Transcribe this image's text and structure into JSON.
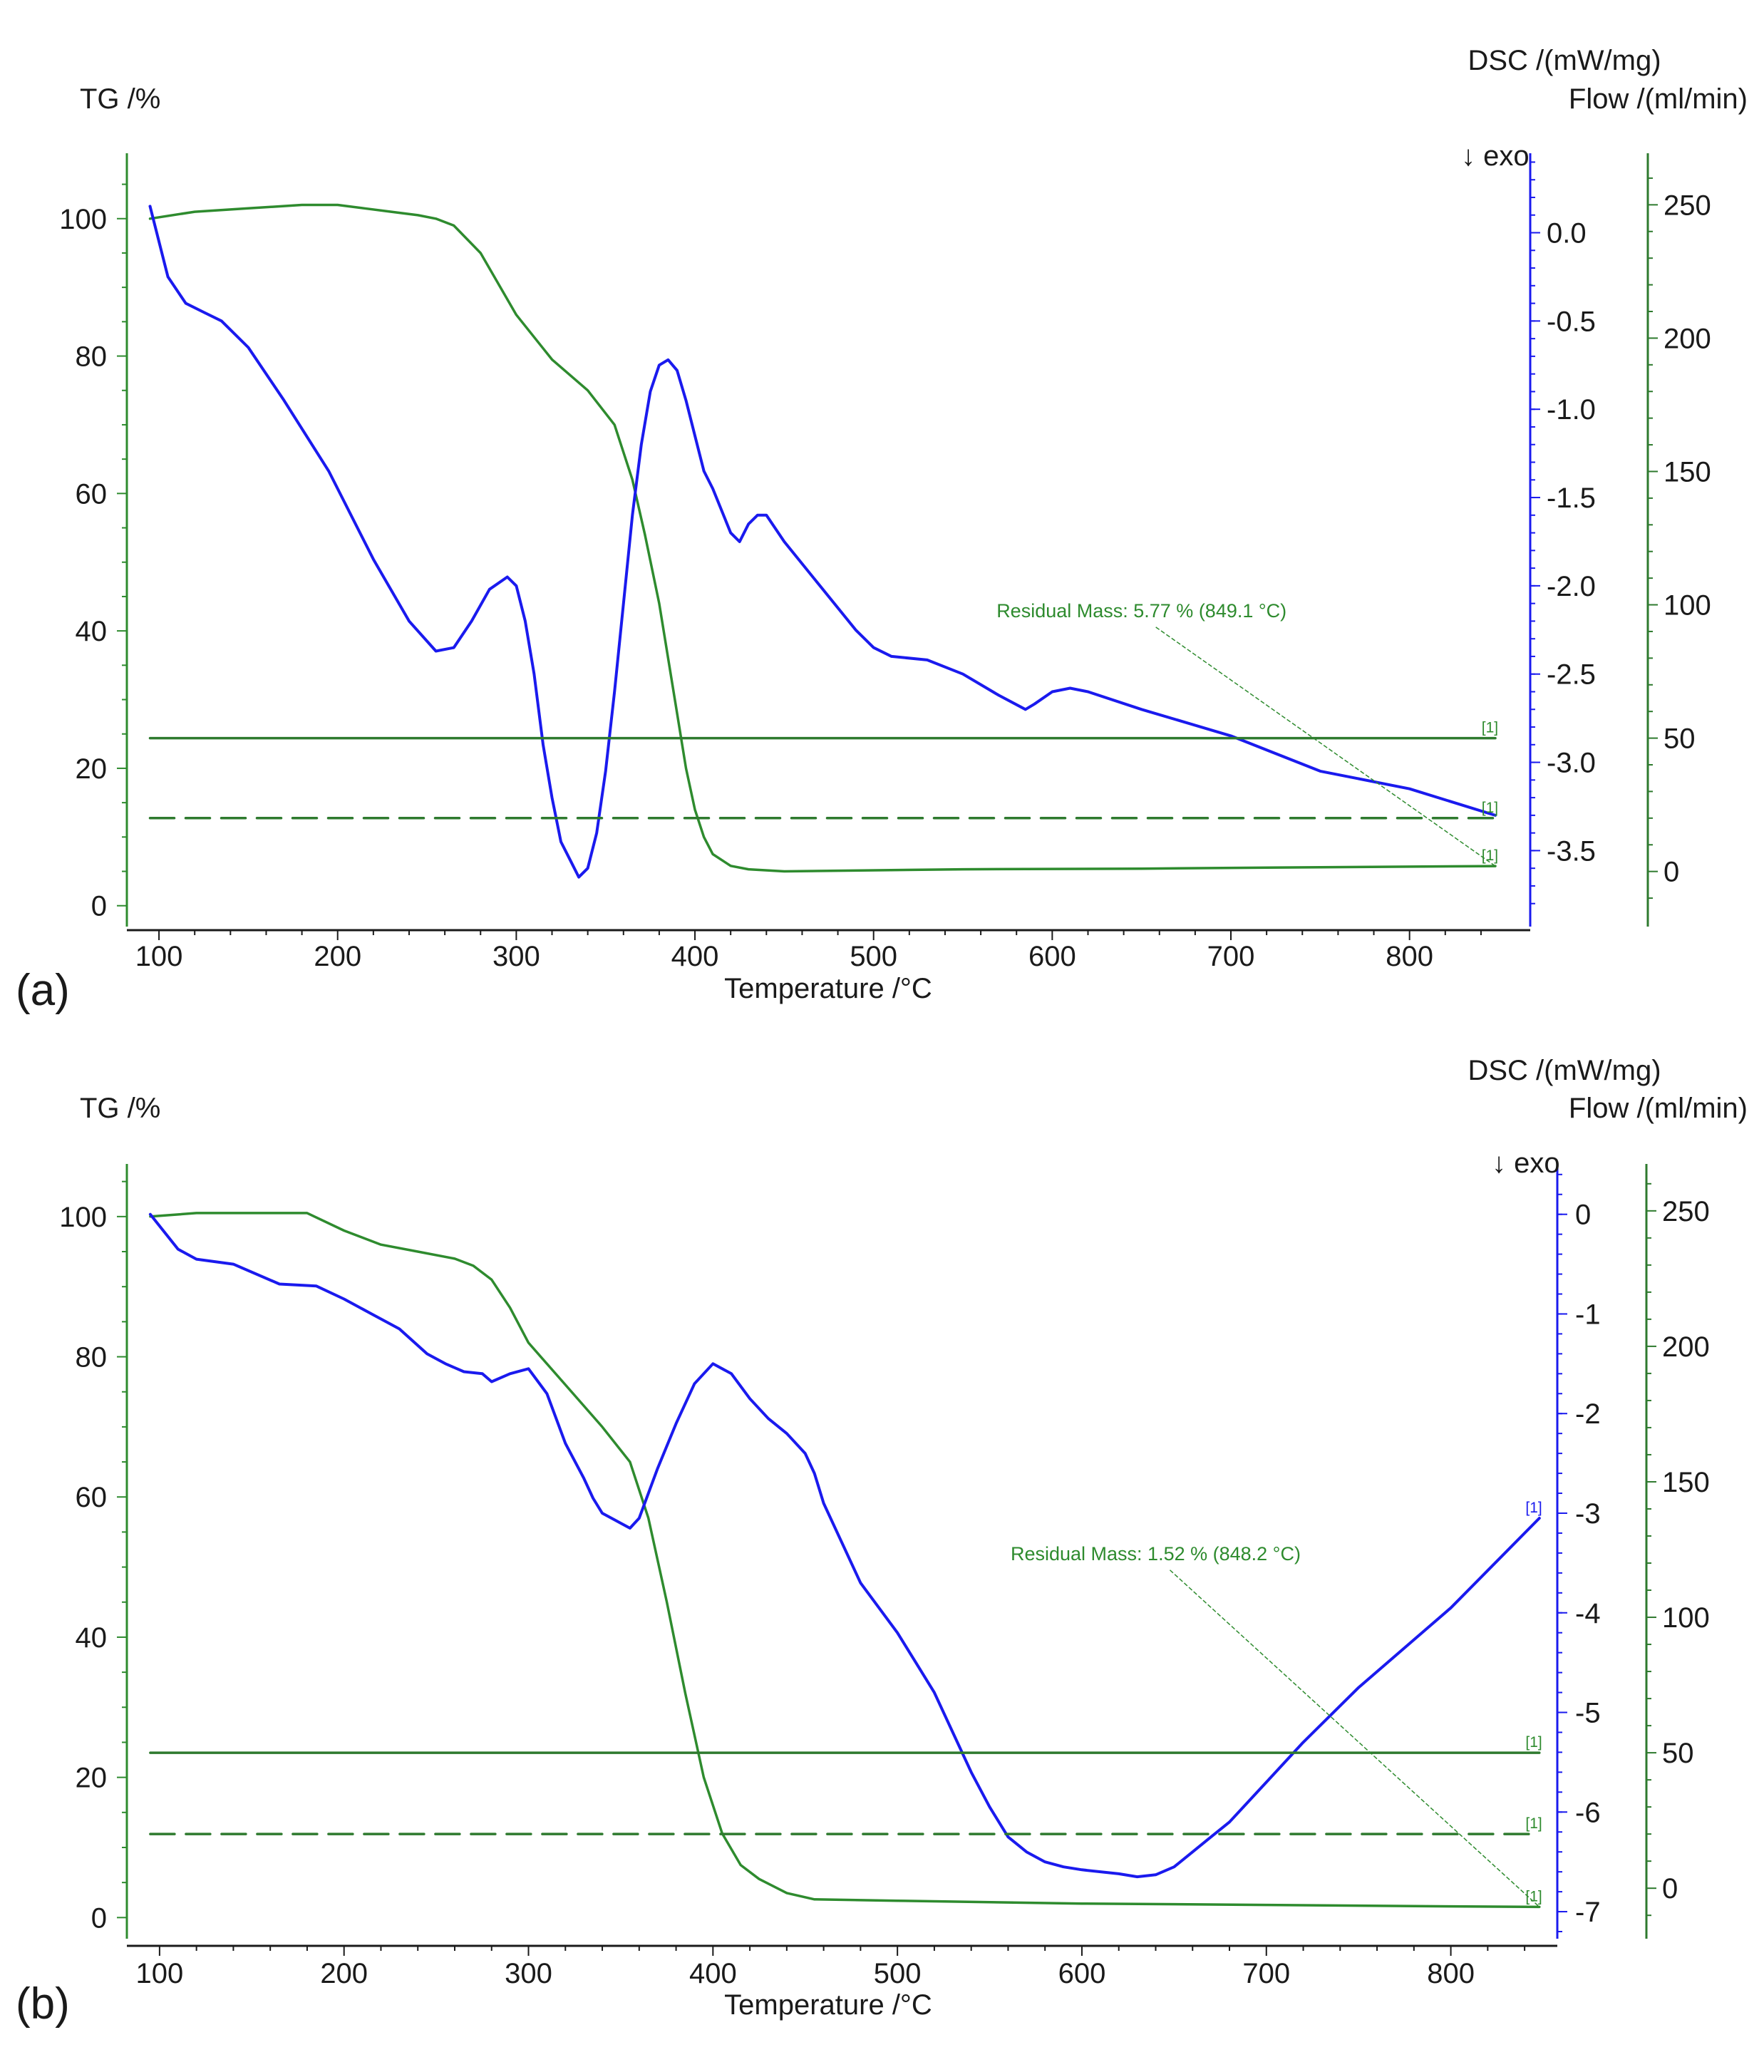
{
  "colors": {
    "tg": "#2e8b2e",
    "dsc": "#1a1aee",
    "flow": "#2e7a2e",
    "axis": "#1a1a1a"
  },
  "chart_data": [
    {
      "type": "line",
      "panel_label": "(a)",
      "xlabel": "Temperature /°C",
      "ylabel_left": "TG /%",
      "ylabel_right_dsc": "DSC /(mW/mg)",
      "ylabel_right_flow": "Flow /(ml/min)",
      "exo_label": "↓ exo",
      "xlim": [
        90,
        850
      ],
      "xticks": [
        100,
        200,
        300,
        400,
        500,
        600,
        700,
        800
      ],
      "tg_lim": [
        -2,
        109
      ],
      "tg_ticks": [
        0,
        20,
        40,
        60,
        80,
        100
      ],
      "dsc_lim": [
        -3.89,
        0.43
      ],
      "dsc_ticks": [
        0.0,
        -0.5,
        -1.0,
        -1.5,
        -2.0,
        -2.5,
        -3.0,
        -3.5
      ],
      "dsc_tick_labels": [
        "0.0",
        "-0.5",
        "-1.0",
        "-1.5",
        "-2.0",
        "-2.5",
        "-3.0",
        "-3.5"
      ],
      "flow_lim": [
        -18,
        268
      ],
      "flow_ticks": [
        0,
        50,
        100,
        150,
        200,
        250
      ],
      "series": [
        {
          "key": "tg",
          "axis": "tg",
          "x": [
            95,
            120,
            150,
            180,
            200,
            215,
            230,
            245,
            255,
            265,
            280,
            300,
            320,
            340,
            355,
            365,
            372,
            380,
            390,
            395,
            400,
            405,
            410,
            420,
            430,
            450,
            480,
            550,
            650,
            750,
            848
          ],
          "y": [
            100,
            101,
            101.5,
            102,
            102,
            101.5,
            101,
            100.5,
            100,
            99,
            95,
            86,
            79.5,
            75,
            70,
            62,
            54,
            44,
            28,
            20,
            14,
            10,
            7.5,
            5.8,
            5.3,
            5.0,
            5.1,
            5.3,
            5.4,
            5.6,
            5.77
          ]
        },
        {
          "key": "dsc",
          "axis": "dsc",
          "x": [
            95,
            105,
            115,
            125,
            135,
            150,
            170,
            195,
            220,
            240,
            255,
            265,
            275,
            285,
            295,
            300,
            305,
            310,
            315,
            320,
            325,
            330,
            335,
            340,
            345,
            350,
            355,
            360,
            365,
            370,
            375,
            380,
            385,
            390,
            395,
            400,
            405,
            410,
            420,
            425,
            430,
            435,
            440,
            450,
            470,
            490,
            500,
            510,
            530,
            550,
            570,
            585,
            590,
            600,
            610,
            620,
            650,
            700,
            750,
            800,
            848
          ],
          "y": [
            0.15,
            -0.25,
            -0.4,
            -0.45,
            -0.5,
            -0.65,
            -0.95,
            -1.35,
            -1.85,
            -2.2,
            -2.37,
            -2.35,
            -2.2,
            -2.02,
            -1.95,
            -2.0,
            -2.2,
            -2.5,
            -2.9,
            -3.2,
            -3.45,
            -3.55,
            -3.65,
            -3.6,
            -3.4,
            -3.05,
            -2.6,
            -2.1,
            -1.6,
            -1.2,
            -0.9,
            -0.75,
            -0.72,
            -0.78,
            -0.95,
            -1.15,
            -1.35,
            -1.45,
            -1.7,
            -1.75,
            -1.65,
            -1.6,
            -1.6,
            -1.75,
            -2.0,
            -2.25,
            -2.35,
            -2.4,
            -2.42,
            -2.5,
            -2.62,
            -2.7,
            -2.67,
            -2.6,
            -2.58,
            -2.6,
            -2.7,
            -2.85,
            -3.05,
            -3.15,
            -3.3
          ]
        },
        {
          "key": "flow",
          "axis": "flow",
          "dash": false,
          "x": [
            95,
            848
          ],
          "y": [
            50,
            50
          ]
        },
        {
          "key": "flow",
          "axis": "flow",
          "dash": true,
          "x": [
            95,
            848
          ],
          "y": [
            20,
            20
          ]
        }
      ],
      "annotation": {
        "text": "Residual Mass: 5.77 % (849.1 °C)",
        "x": 650,
        "tg": 42,
        "to_x": 848,
        "to_tg": 5.77
      },
      "markers": [
        {
          "text": "[1]",
          "x": 845,
          "axis": "flow",
          "y": 50,
          "color": "tg"
        },
        {
          "text": "[1]",
          "x": 845,
          "axis": "flow",
          "y": 20,
          "color": "tg"
        },
        {
          "text": "[1]",
          "x": 845,
          "axis": "tg",
          "y": 5.77,
          "color": "tg"
        }
      ]
    },
    {
      "type": "line",
      "panel_label": "(b)",
      "xlabel": "Temperature /°C",
      "ylabel_left": "TG /%",
      "ylabel_right_dsc": "DSC /(mW/mg)",
      "ylabel_right_flow": "Flow /(ml/min)",
      "exo_label": "↓ exo",
      "xlim": [
        90,
        850
      ],
      "xticks": [
        100,
        200,
        300,
        400,
        500,
        600,
        700,
        800
      ],
      "tg_lim": [
        -2,
        107
      ],
      "tg_ticks": [
        0,
        20,
        40,
        60,
        80,
        100
      ],
      "dsc_lim": [
        -7.2,
        0.47
      ],
      "dsc_ticks": [
        0,
        -1,
        -2,
        -3,
        -4,
        -5,
        -6,
        -7
      ],
      "dsc_tick_labels": [
        "0",
        "-1",
        "-2",
        "-3",
        "-4",
        "-5",
        "-6",
        "-7"
      ],
      "flow_lim": [
        -16,
        266
      ],
      "flow_ticks": [
        0,
        50,
        100,
        150,
        200,
        250
      ],
      "series": [
        {
          "key": "tg",
          "axis": "tg",
          "x": [
            95,
            120,
            150,
            180,
            200,
            220,
            240,
            260,
            270,
            280,
            290,
            300,
            320,
            340,
            355,
            365,
            375,
            385,
            395,
            405,
            415,
            425,
            440,
            455,
            500,
            600,
            700,
            800,
            848
          ],
          "y": [
            100,
            100.5,
            100.5,
            100.5,
            98,
            96,
            95,
            94,
            93,
            91,
            87,
            82,
            76,
            70,
            65,
            57,
            45,
            32,
            20,
            12,
            7.5,
            5.5,
            3.5,
            2.6,
            2.4,
            2.0,
            1.8,
            1.6,
            1.52
          ]
        },
        {
          "key": "dsc",
          "axis": "dsc",
          "x": [
            95,
            110,
            120,
            140,
            165,
            185,
            200,
            215,
            230,
            245,
            255,
            265,
            275,
            280,
            290,
            300,
            310,
            320,
            330,
            335,
            340,
            345,
            350,
            355,
            360,
            370,
            380,
            390,
            400,
            410,
            420,
            430,
            440,
            450,
            455,
            460,
            470,
            480,
            490,
            500,
            510,
            520,
            530,
            540,
            550,
            560,
            570,
            580,
            590,
            600,
            620,
            630,
            640,
            650,
            660,
            670,
            680,
            700,
            720,
            750,
            800,
            848
          ],
          "y": [
            0.0,
            -0.35,
            -0.45,
            -0.5,
            -0.7,
            -0.72,
            -0.85,
            -1.0,
            -1.15,
            -1.4,
            -1.5,
            -1.58,
            -1.6,
            -1.68,
            -1.6,
            -1.55,
            -1.8,
            -2.3,
            -2.65,
            -2.85,
            -3.0,
            -3.05,
            -3.1,
            -3.15,
            -3.05,
            -2.55,
            -2.1,
            -1.7,
            -1.5,
            -1.6,
            -1.85,
            -2.05,
            -2.2,
            -2.4,
            -2.6,
            -2.9,
            -3.3,
            -3.7,
            -3.95,
            -4.2,
            -4.5,
            -4.8,
            -5.2,
            -5.6,
            -5.95,
            -6.25,
            -6.4,
            -6.5,
            -6.55,
            -6.58,
            -6.62,
            -6.65,
            -6.63,
            -6.55,
            -6.4,
            -6.25,
            -6.1,
            -5.7,
            -5.3,
            -4.75,
            -3.95,
            -3.05
          ]
        },
        {
          "key": "flow",
          "axis": "flow",
          "dash": false,
          "x": [
            95,
            848
          ],
          "y": [
            50,
            50
          ]
        },
        {
          "key": "flow",
          "axis": "flow",
          "dash": true,
          "x": [
            95,
            848
          ],
          "y": [
            20,
            20
          ]
        }
      ],
      "annotation": {
        "text": "Residual Mass: 1.52 % (848.2 °C)",
        "x": 640,
        "tg": 51,
        "to_x": 848,
        "to_tg": 1.52
      },
      "markers": [
        {
          "text": "[1]",
          "x": 845,
          "axis": "dsc",
          "y": -3.05,
          "color": "dsc"
        },
        {
          "text": "[1]",
          "x": 845,
          "axis": "flow",
          "y": 50,
          "color": "tg"
        },
        {
          "text": "[1]",
          "x": 845,
          "axis": "flow",
          "y": 20,
          "color": "tg"
        },
        {
          "text": "[1]",
          "x": 845,
          "axis": "tg",
          "y": 1.52,
          "color": "tg"
        }
      ]
    }
  ]
}
